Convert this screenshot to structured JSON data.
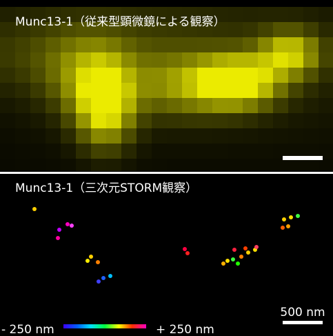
{
  "panels": [
    {
      "title": "Munc13-1（従来型顕微鏡による観察）"
    },
    {
      "title": "Munc13-1（三次元STORM観察）",
      "scale_bar_label": "500 nm",
      "colorbar": {
        "min_label": "- 250 nm",
        "max_label": "+ 250 nm"
      }
    }
  ]
}
